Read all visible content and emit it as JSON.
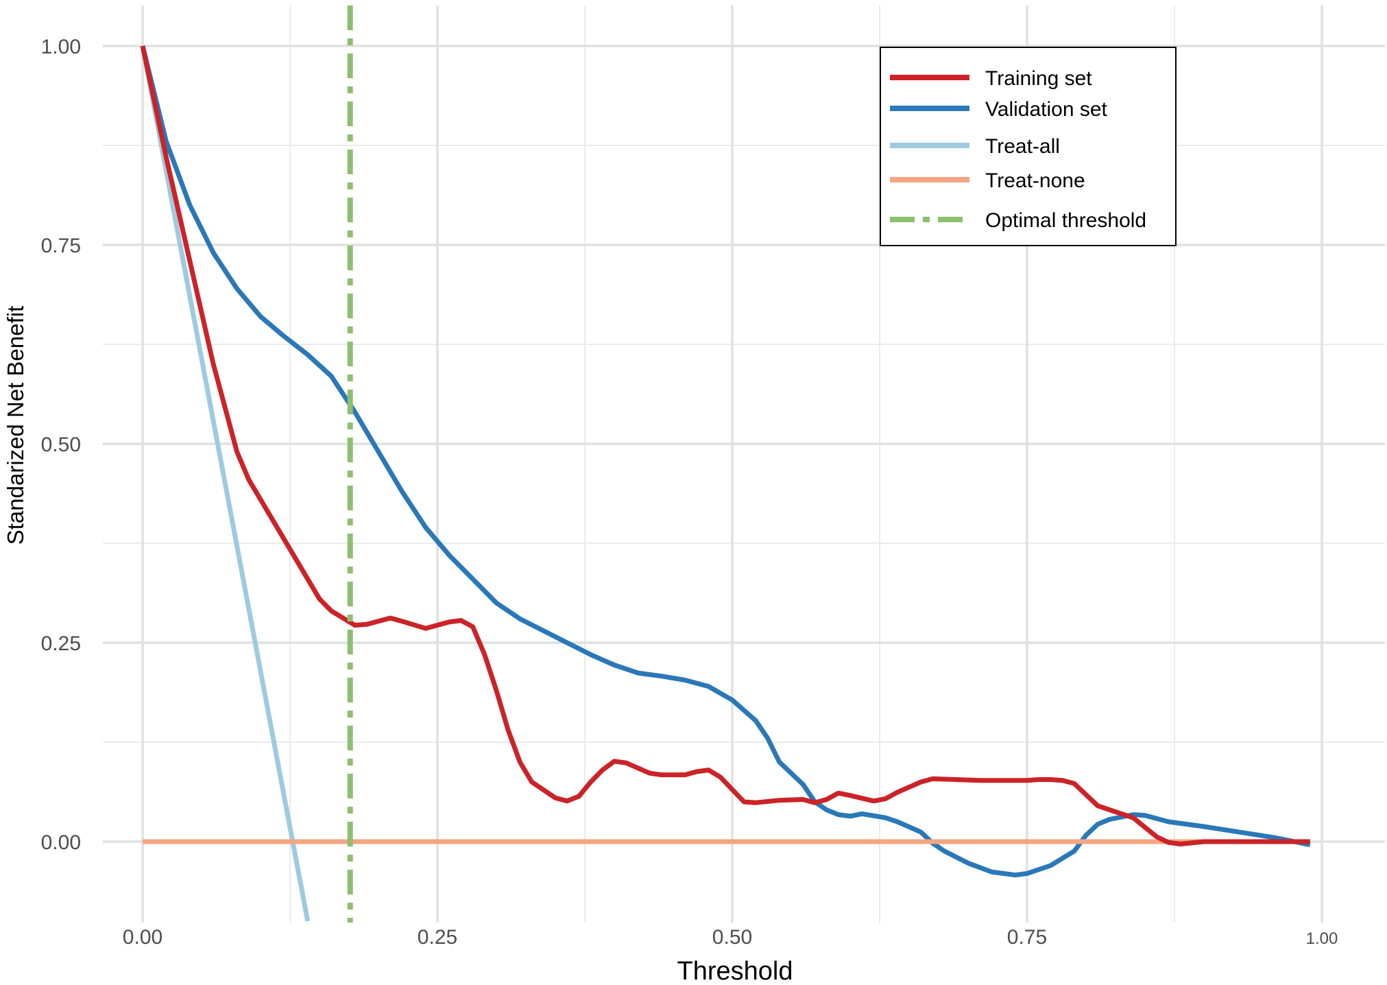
{
  "chart_data": {
    "type": "line",
    "xlabel": "Threshold",
    "ylabel": "Standarized Net Benefit",
    "xlim": [
      0,
      1
    ],
    "ylim": [
      -0.1,
      1.05
    ],
    "x_ticks": [
      0,
      0.25,
      0.5,
      0.75,
      1.0
    ],
    "x_tick_labels": [
      "0.00",
      "0.25",
      "0.50",
      "0.75",
      "1.00"
    ],
    "y_ticks": [
      0,
      0.25,
      0.5,
      0.75,
      1.0
    ],
    "y_tick_labels": [
      "0.00",
      "0.25",
      "0.50",
      "0.75",
      "1.00"
    ],
    "grid": true,
    "legend_position": "top-right",
    "series": [
      {
        "name": "Training set",
        "color": "#cb2327",
        "style": "solid",
        "points": [
          [
            0.0,
            1.0
          ],
          [
            0.02,
            0.86
          ],
          [
            0.04,
            0.73
          ],
          [
            0.06,
            0.6
          ],
          [
            0.08,
            0.49
          ],
          [
            0.09,
            0.455
          ],
          [
            0.1,
            0.43
          ],
          [
            0.12,
            0.38
          ],
          [
            0.14,
            0.33
          ],
          [
            0.15,
            0.305
          ],
          [
            0.16,
            0.29
          ],
          [
            0.18,
            0.272
          ],
          [
            0.19,
            0.273
          ],
          [
            0.21,
            0.281
          ],
          [
            0.22,
            0.277
          ],
          [
            0.24,
            0.268
          ],
          [
            0.26,
            0.276
          ],
          [
            0.27,
            0.278
          ],
          [
            0.28,
            0.27
          ],
          [
            0.29,
            0.235
          ],
          [
            0.3,
            0.19
          ],
          [
            0.31,
            0.14
          ],
          [
            0.32,
            0.1
          ],
          [
            0.33,
            0.075
          ],
          [
            0.35,
            0.055
          ],
          [
            0.36,
            0.051
          ],
          [
            0.37,
            0.057
          ],
          [
            0.38,
            0.075
          ],
          [
            0.39,
            0.09
          ],
          [
            0.4,
            0.101
          ],
          [
            0.41,
            0.099
          ],
          [
            0.43,
            0.086
          ],
          [
            0.44,
            0.084
          ],
          [
            0.46,
            0.084
          ],
          [
            0.47,
            0.088
          ],
          [
            0.48,
            0.09
          ],
          [
            0.49,
            0.081
          ],
          [
            0.51,
            0.05
          ],
          [
            0.52,
            0.049
          ],
          [
            0.54,
            0.052
          ],
          [
            0.56,
            0.053
          ],
          [
            0.57,
            0.049
          ],
          [
            0.58,
            0.053
          ],
          [
            0.59,
            0.061
          ],
          [
            0.6,
            0.058
          ],
          [
            0.62,
            0.051
          ],
          [
            0.63,
            0.054
          ],
          [
            0.64,
            0.062
          ],
          [
            0.66,
            0.075
          ],
          [
            0.67,
            0.079
          ],
          [
            0.69,
            0.078
          ],
          [
            0.71,
            0.077
          ],
          [
            0.73,
            0.077
          ],
          [
            0.75,
            0.077
          ],
          [
            0.76,
            0.078
          ],
          [
            0.77,
            0.078
          ],
          [
            0.78,
            0.077
          ],
          [
            0.79,
            0.073
          ],
          [
            0.81,
            0.045
          ],
          [
            0.82,
            0.04
          ],
          [
            0.84,
            0.03
          ],
          [
            0.85,
            0.018
          ],
          [
            0.86,
            0.006
          ],
          [
            0.87,
            -0.001
          ],
          [
            0.88,
            -0.003
          ],
          [
            0.9,
            0.0
          ],
          [
            0.99,
            0.0
          ]
        ]
      },
      {
        "name": "Validation set",
        "color": "#2a78b8",
        "style": "solid",
        "points": [
          [
            0.0,
            1.0
          ],
          [
            0.02,
            0.88
          ],
          [
            0.04,
            0.8
          ],
          [
            0.06,
            0.74
          ],
          [
            0.08,
            0.695
          ],
          [
            0.1,
            0.66
          ],
          [
            0.12,
            0.635
          ],
          [
            0.14,
            0.612
          ],
          [
            0.16,
            0.585
          ],
          [
            0.18,
            0.54
          ],
          [
            0.2,
            0.49
          ],
          [
            0.22,
            0.44
          ],
          [
            0.24,
            0.395
          ],
          [
            0.26,
            0.36
          ],
          [
            0.28,
            0.33
          ],
          [
            0.3,
            0.3
          ],
          [
            0.32,
            0.28
          ],
          [
            0.34,
            0.265
          ],
          [
            0.36,
            0.25
          ],
          [
            0.38,
            0.235
          ],
          [
            0.4,
            0.222
          ],
          [
            0.42,
            0.212
          ],
          [
            0.44,
            0.208
          ],
          [
            0.46,
            0.203
          ],
          [
            0.48,
            0.195
          ],
          [
            0.5,
            0.178
          ],
          [
            0.52,
            0.152
          ],
          [
            0.53,
            0.13
          ],
          [
            0.54,
            0.1
          ],
          [
            0.56,
            0.072
          ],
          [
            0.57,
            0.05
          ],
          [
            0.58,
            0.04
          ],
          [
            0.59,
            0.034
          ],
          [
            0.6,
            0.032
          ],
          [
            0.61,
            0.035
          ],
          [
            0.63,
            0.03
          ],
          [
            0.64,
            0.025
          ],
          [
            0.66,
            0.012
          ],
          [
            0.67,
            -0.002
          ],
          [
            0.68,
            -0.012
          ],
          [
            0.7,
            -0.027
          ],
          [
            0.72,
            -0.038
          ],
          [
            0.74,
            -0.042
          ],
          [
            0.75,
            -0.04
          ],
          [
            0.77,
            -0.03
          ],
          [
            0.79,
            -0.012
          ],
          [
            0.8,
            0.008
          ],
          [
            0.81,
            0.022
          ],
          [
            0.82,
            0.028
          ],
          [
            0.84,
            0.034
          ],
          [
            0.85,
            0.033
          ],
          [
            0.87,
            0.025
          ],
          [
            0.9,
            0.019
          ],
          [
            0.93,
            0.012
          ],
          [
            0.96,
            0.005
          ],
          [
            0.99,
            -0.004
          ]
        ]
      },
      {
        "name": "Treat-all",
        "color": "#9ecae1",
        "style": "solid",
        "points": [
          [
            0.0,
            1.0
          ],
          [
            0.14,
            -0.1
          ]
        ]
      },
      {
        "name": "Treat-none",
        "color": "#f4a582",
        "style": "solid",
        "points": [
          [
            0.0,
            0.0
          ],
          [
            0.99,
            0.0
          ]
        ]
      }
    ],
    "vlines": [
      {
        "name": "Optimal threshold",
        "x": 0.176,
        "color": "#8cc06f",
        "style": "dashdot"
      }
    ],
    "legend": [
      {
        "label": "Training set",
        "color": "#cb2327",
        "style": "solid"
      },
      {
        "label": "Validation set",
        "color": "#2a78b8",
        "style": "solid"
      },
      {
        "label": "Treat-all",
        "color": "#9ecae1",
        "style": "solid"
      },
      {
        "label": "Treat-none",
        "color": "#f4a582",
        "style": "solid"
      },
      {
        "label": "Optimal threshold",
        "color": "#8cc06f",
        "style": "dashdot"
      }
    ]
  }
}
